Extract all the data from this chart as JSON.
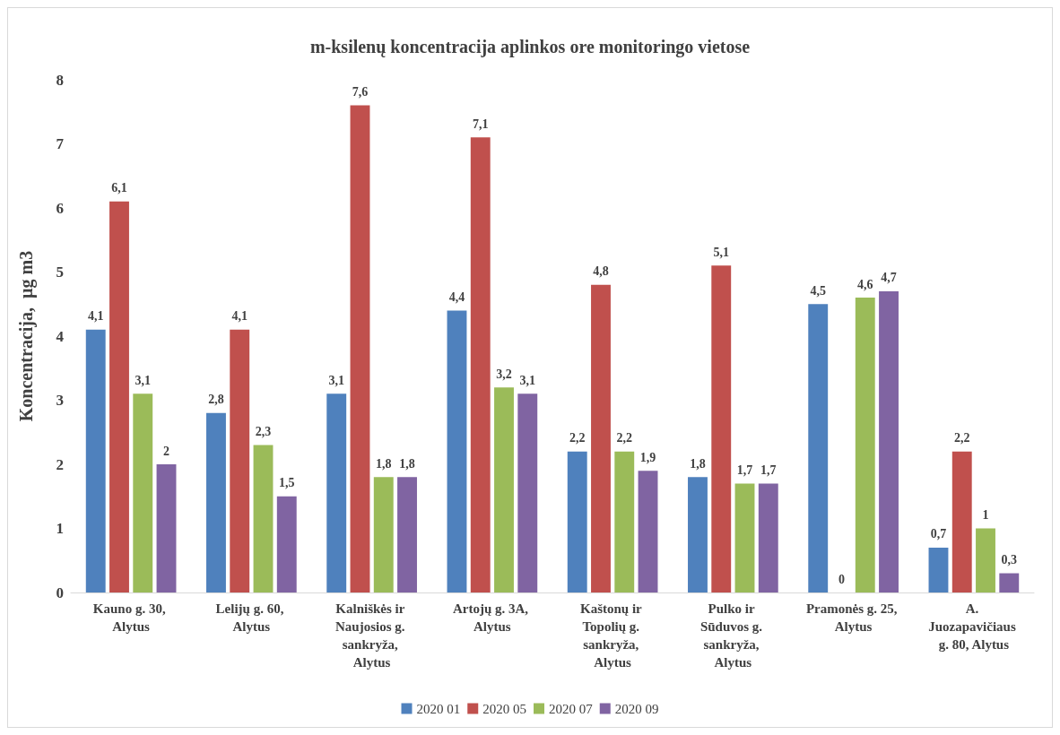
{
  "chart_data": {
    "type": "bar",
    "title": "m-ksilenų koncentracija aplinkos ore monitoringo vietose",
    "ylabel": "Koncentracija,  µg m3",
    "categories": [
      "Kauno g. 30, Alytus",
      "Lelijų g. 60, Alytus",
      "Kalniškės ir Naujosios g. sankryža, Alytus",
      "Artojų g. 3A, Alytus",
      "Kaštonų ir Topolių g. sankryža, Alytus",
      "Pulko ir Sūduvos g. sankryža, Alytus",
      "Pramonės g. 25, Alytus",
      "A. Juozapavičiaus g. 80, Alytus"
    ],
    "series": [
      {
        "name": "2020 01",
        "color": "#4f81bd",
        "values": [
          4.1,
          2.8,
          3.1,
          4.4,
          2.2,
          1.8,
          4.5,
          0.7
        ],
        "value_labels": [
          "4,1",
          "2,8",
          "3,1",
          "4,4",
          "2,2",
          "1,8",
          "4,5",
          "0,7"
        ]
      },
      {
        "name": "2020 05",
        "color": "#c0504d",
        "values": [
          6.1,
          4.1,
          7.6,
          7.1,
          4.8,
          5.1,
          0,
          2.2
        ],
        "value_labels": [
          "6,1",
          "4,1",
          "7,6",
          "7,1",
          "4,8",
          "5,1",
          "0",
          "2,2"
        ]
      },
      {
        "name": "2020 07",
        "color": "#9bbb59",
        "values": [
          3.1,
          2.3,
          1.8,
          3.2,
          2.2,
          1.7,
          4.6,
          1
        ],
        "value_labels": [
          "3,1",
          "2,3",
          "1,8",
          "3,2",
          "2,2",
          "1,7",
          "4,6",
          "1"
        ]
      },
      {
        "name": "2020 09",
        "color": "#8064a2",
        "values": [
          2,
          1.5,
          1.8,
          3.1,
          1.9,
          1.7,
          4.7,
          0.3
        ],
        "value_labels": [
          "2",
          "1,5",
          "1,8",
          "3,1",
          "1,9",
          "1,7",
          "4,7",
          "0,3"
        ]
      }
    ],
    "ylim": [
      0,
      8
    ],
    "yticks": [
      0,
      1,
      2,
      3,
      4,
      5,
      6,
      7,
      8
    ],
    "grid": false,
    "legend": "bottom"
  }
}
